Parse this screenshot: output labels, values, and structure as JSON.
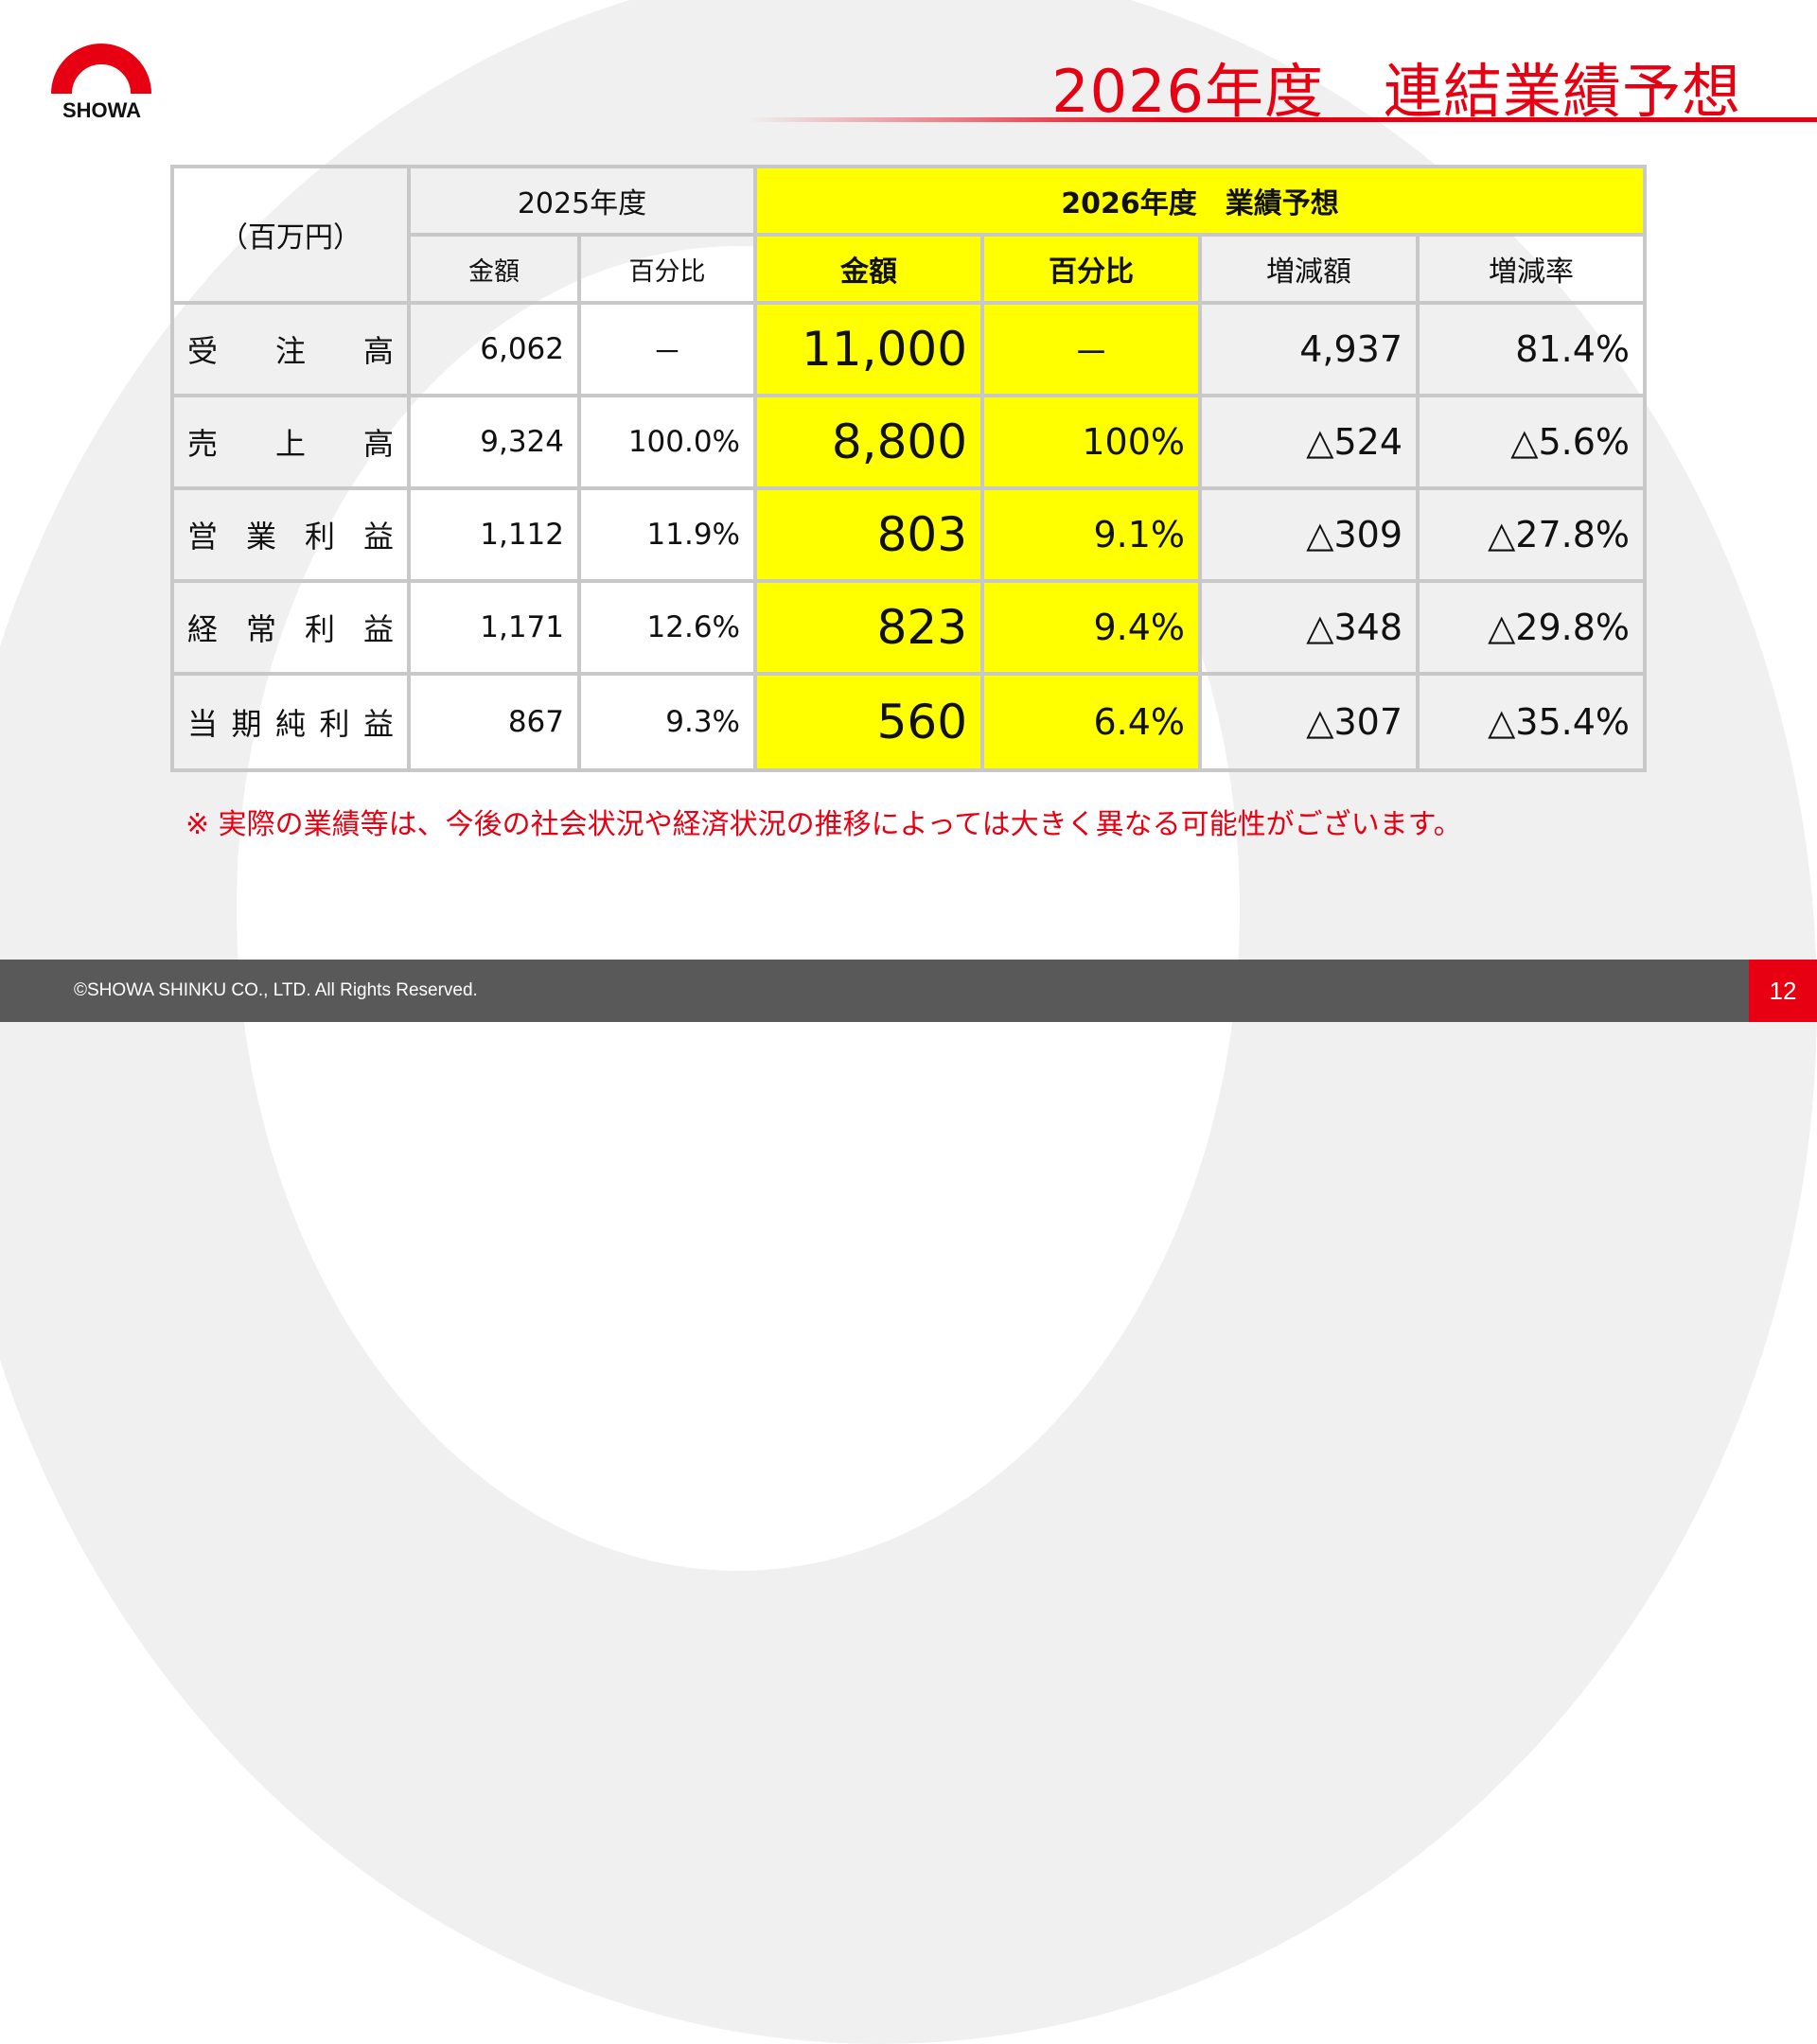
{
  "logo": {
    "text": "SHOWA"
  },
  "title": "2026年度　連結業績予想",
  "colors": {
    "brand_red": "#e60012",
    "highlight": "#ffff00",
    "grid": "#c8c8c8",
    "footer": "#595959"
  },
  "table": {
    "unit_label": "（百万円）",
    "prev_year_header": "2025年度",
    "forecast_header": "2026年度　業績予想",
    "columns": [
      "金額",
      "百分比",
      "金額",
      "百分比",
      "増減額",
      "増減率"
    ],
    "rows": [
      {
        "label": "受注高",
        "prev_amount": "6,062",
        "prev_ratio": "－",
        "amount": "11,000",
        "ratio": "－",
        "change": "4,937",
        "change_rate": "81.4%"
      },
      {
        "label": "売上高",
        "prev_amount": "9,324",
        "prev_ratio": "100.0%",
        "amount": "8,800",
        "ratio": "100%",
        "change": "△524",
        "change_rate": "△5.6%"
      },
      {
        "label": "営業利益",
        "prev_amount": "1,112",
        "prev_ratio": "11.9%",
        "amount": "803",
        "ratio": "9.1%",
        "change": "△309",
        "change_rate": "△27.8%"
      },
      {
        "label": "経常利益",
        "prev_amount": "1,171",
        "prev_ratio": "12.6%",
        "amount": "823",
        "ratio": "9.4%",
        "change": "△348",
        "change_rate": "△29.8%"
      },
      {
        "label": "当期純利益",
        "prev_amount": "867",
        "prev_ratio": "9.3%",
        "amount": "560",
        "ratio": "6.4%",
        "change": "△307",
        "change_rate": "△35.4%"
      }
    ]
  },
  "note": "※ 実際の業績等は、今後の社会状況や経済状況の推移によっては大きく異なる可能性がございます。",
  "footer": {
    "copyright": "©SHOWA SHINKU CO., LTD. All Rights Reserved.",
    "page_number": "12"
  }
}
